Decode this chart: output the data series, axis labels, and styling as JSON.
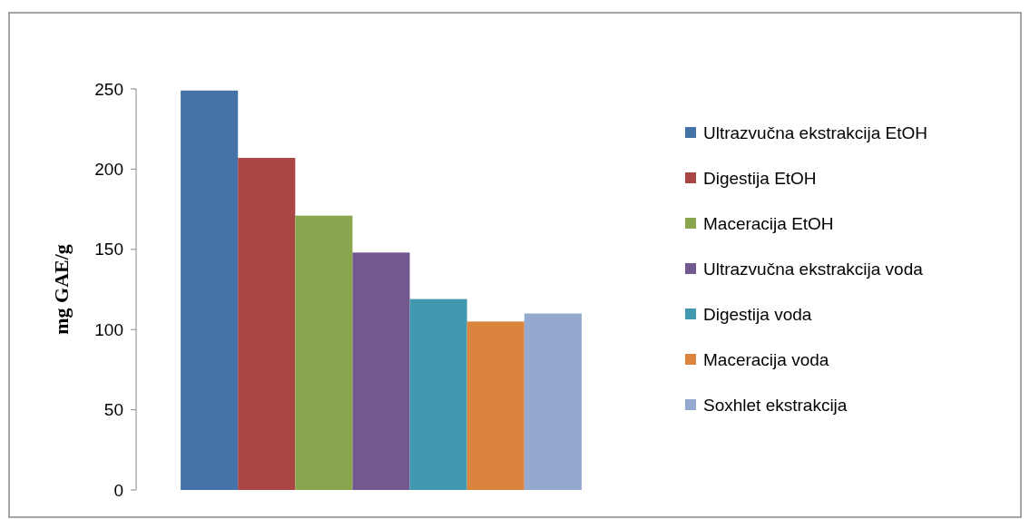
{
  "chart_data": {
    "type": "bar",
    "ylabel": "mg GAE/g",
    "categories": [
      null
    ],
    "series": [
      {
        "name": "Ultrazvučna ekstrakcija EtOH",
        "color": "#4573a7",
        "values": [
          249
        ]
      },
      {
        "name": "Digestija EtOH",
        "color": "#aa4643",
        "values": [
          207
        ]
      },
      {
        "name": "Maceracija EtOH",
        "color": "#89a54e",
        "values": [
          171
        ]
      },
      {
        "name": "Ultrazvučna ekstrakcija voda",
        "color": "#71588f",
        "values": [
          148
        ]
      },
      {
        "name": "Digestija voda",
        "color": "#4198af",
        "values": [
          119
        ]
      },
      {
        "name": "Maceracija voda",
        "color": "#db843d",
        "values": [
          105
        ]
      },
      {
        "name": "Soxhlet ekstrakcija",
        "color": "#93a9cf",
        "values": [
          110
        ]
      }
    ],
    "ylim": [
      0,
      250
    ],
    "yticks": [
      0,
      50,
      100,
      150,
      200,
      250
    ],
    "grid": false,
    "legend": "right"
  }
}
